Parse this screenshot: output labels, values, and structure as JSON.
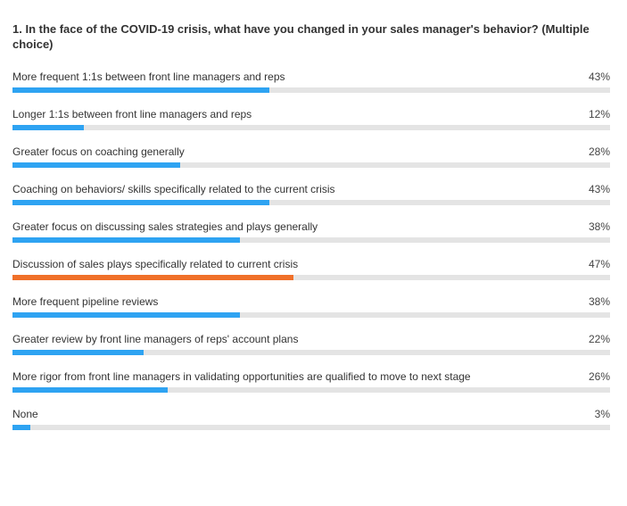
{
  "question": "1. In the face of the COVID-19 crisis, what have you changed in your sales manager's behavior? (Multiple choice)",
  "colors": {
    "bar": "#2ea3f2",
    "highlight": "#f07029",
    "track": "#e4e4e4"
  },
  "chart_data": {
    "type": "bar",
    "orientation": "horizontal",
    "title": "1. In the face of the COVID-19 crisis, what have you changed in your sales manager's behavior? (Multiple choice)",
    "xlim": [
      0,
      100
    ],
    "categories": [
      "More frequent 1:1s between front line managers and reps",
      "Longer 1:1s between front line managers and reps",
      "Greater focus on coaching generally",
      "Coaching on behaviors/ skills specifically related to the current crisis",
      "Greater focus on discussing sales strategies and plays generally",
      "Discussion of sales plays specifically related to current crisis",
      "More frequent pipeline reviews",
      "Greater review by front line managers of reps' account plans",
      "More rigor from front line managers in validating opportunities are qualified to move to next stage",
      "None"
    ],
    "values": [
      43,
      12,
      28,
      43,
      38,
      47,
      38,
      22,
      26,
      3
    ],
    "value_labels": [
      "43%",
      "12%",
      "28%",
      "43%",
      "38%",
      "47%",
      "38%",
      "22%",
      "26%",
      "3%"
    ],
    "highlight_index": 5
  }
}
